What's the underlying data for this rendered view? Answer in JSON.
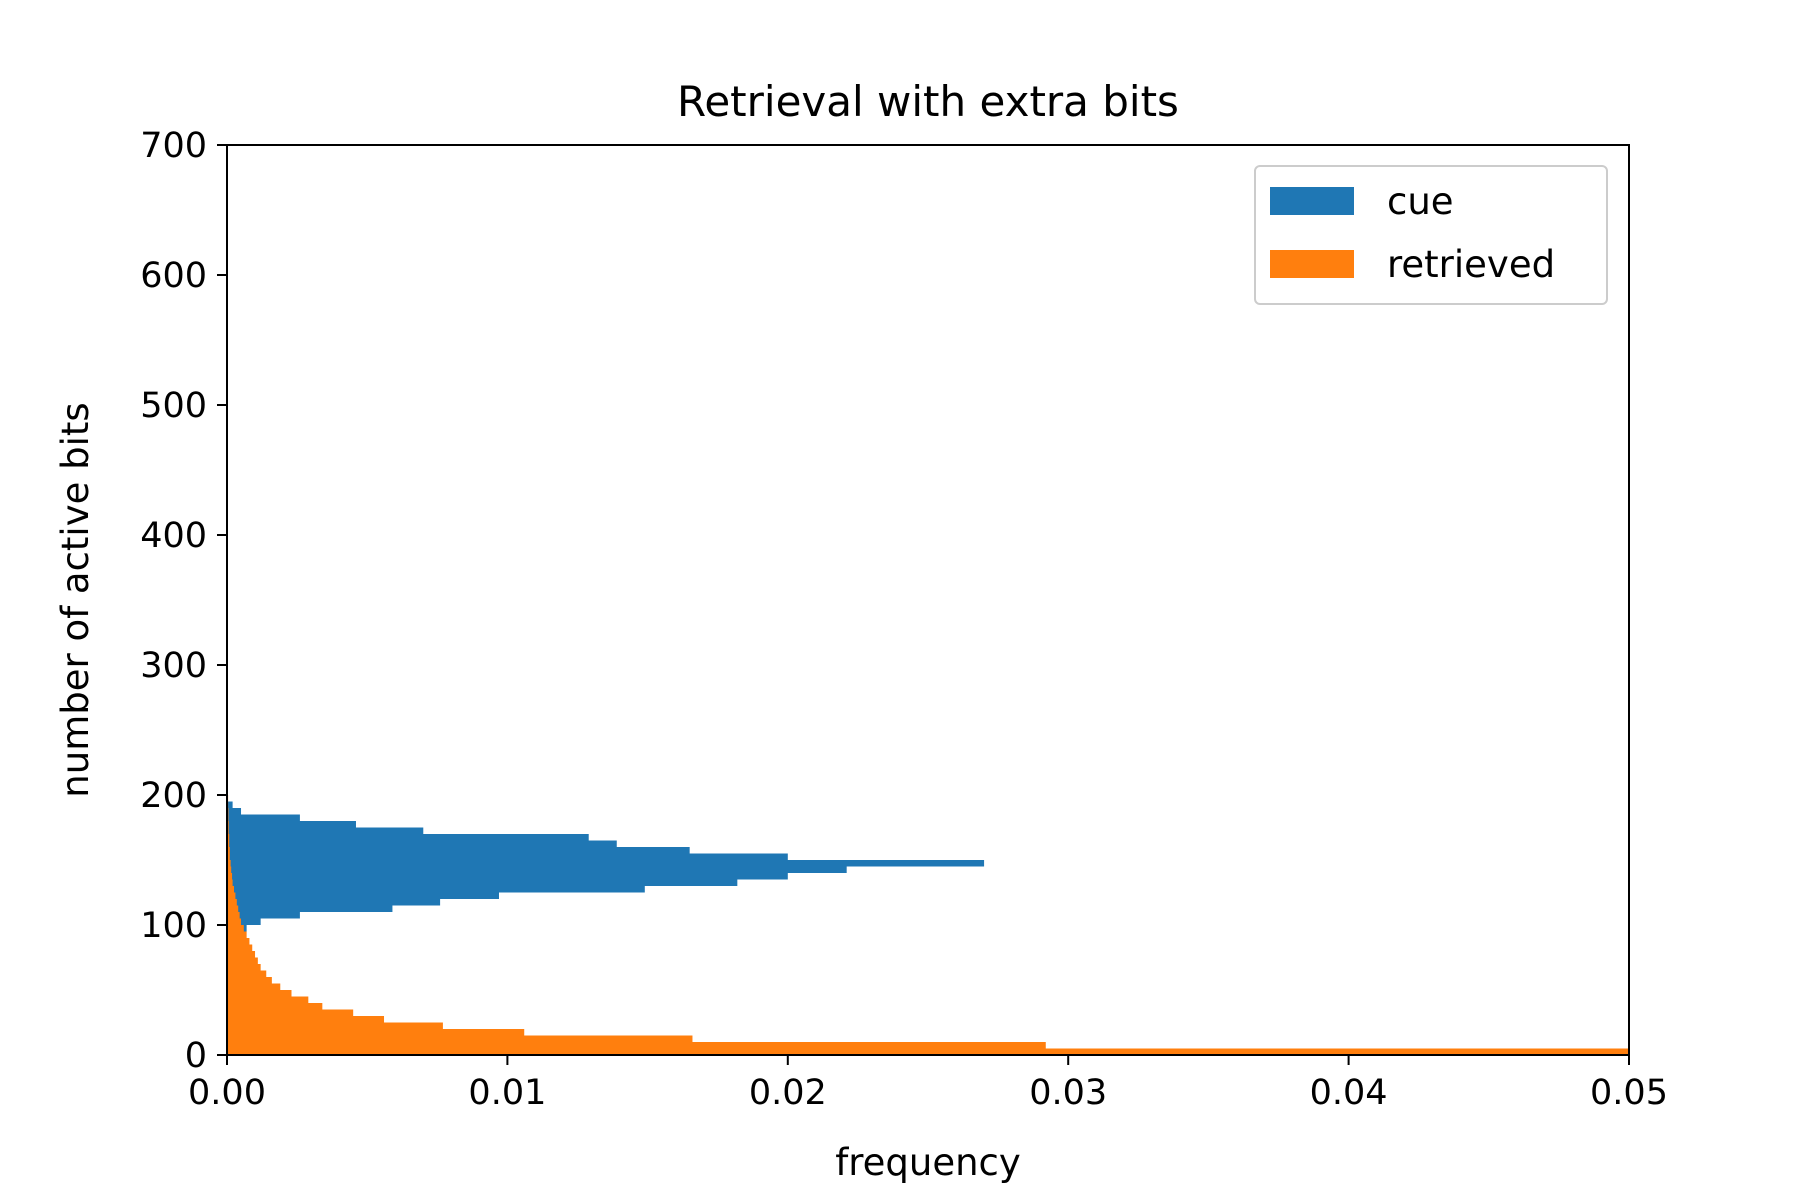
{
  "chart_data": {
    "type": "bar",
    "orientation": "horizontal",
    "title": "Retrieval with extra bits",
    "xlabel": "frequency",
    "ylabel": "number of active bits",
    "xlim": [
      0,
      0.05
    ],
    "ylim": [
      0,
      700
    ],
    "xticks": [
      "0.00",
      "0.01",
      "0.02",
      "0.03",
      "0.04",
      "0.05"
    ],
    "yticks": [
      "0",
      "100",
      "200",
      "300",
      "400",
      "500",
      "600",
      "700"
    ],
    "grid": false,
    "legend_position": "top-right",
    "series": [
      {
        "name": "cue",
        "color": "#1f77b4",
        "bins": [
          [
            95,
            100,
            0.0007
          ],
          [
            100,
            105,
            0.0012
          ],
          [
            105,
            110,
            0.0026
          ],
          [
            110,
            115,
            0.0059
          ],
          [
            115,
            120,
            0.0076
          ],
          [
            120,
            125,
            0.0097
          ],
          [
            125,
            130,
            0.0149
          ],
          [
            130,
            135,
            0.0182
          ],
          [
            135,
            140,
            0.02
          ],
          [
            140,
            145,
            0.0221
          ],
          [
            145,
            150,
            0.027
          ],
          [
            150,
            155,
            0.02
          ],
          [
            155,
            160,
            0.0165
          ],
          [
            160,
            165,
            0.0139
          ],
          [
            165,
            170,
            0.0129
          ],
          [
            170,
            175,
            0.007
          ],
          [
            175,
            180,
            0.0046
          ],
          [
            180,
            185,
            0.0026
          ],
          [
            185,
            190,
            0.0005
          ],
          [
            190,
            195,
            0.0002
          ]
        ]
      },
      {
        "name": "retrieved",
        "color": "#ff7f0e",
        "bins": [
          [
            0,
            5,
            0.05
          ],
          [
            5,
            10,
            0.0292
          ],
          [
            10,
            15,
            0.0166
          ],
          [
            15,
            20,
            0.0106
          ],
          [
            20,
            25,
            0.0077
          ],
          [
            25,
            30,
            0.0056
          ],
          [
            30,
            35,
            0.0045
          ],
          [
            35,
            40,
            0.0034
          ],
          [
            40,
            45,
            0.0029
          ],
          [
            45,
            50,
            0.0023
          ],
          [
            50,
            55,
            0.0019
          ],
          [
            55,
            60,
            0.0016
          ],
          [
            60,
            65,
            0.0014
          ],
          [
            65,
            70,
            0.0012
          ],
          [
            70,
            75,
            0.0011
          ],
          [
            75,
            80,
            0.001
          ],
          [
            80,
            85,
            0.0009
          ],
          [
            85,
            90,
            0.0008
          ],
          [
            90,
            95,
            0.0007
          ],
          [
            95,
            100,
            0.0006
          ],
          [
            100,
            105,
            0.0005
          ],
          [
            105,
            110,
            0.00045
          ],
          [
            110,
            115,
            0.0004
          ],
          [
            115,
            120,
            0.00035
          ],
          [
            120,
            125,
            0.0003
          ],
          [
            125,
            130,
            0.00025
          ],
          [
            130,
            135,
            0.0002
          ],
          [
            135,
            140,
            0.00018
          ],
          [
            140,
            145,
            0.00015
          ],
          [
            145,
            150,
            0.00013
          ],
          [
            150,
            160,
            0.0001
          ],
          [
            160,
            170,
            8e-05
          ],
          [
            170,
            180,
            6e-05
          ],
          [
            180,
            190,
            5e-05
          ],
          [
            190,
            200,
            4e-05
          ],
          [
            200,
            210,
            3e-05
          ],
          [
            210,
            225,
            2e-05
          ]
        ]
      }
    ]
  }
}
